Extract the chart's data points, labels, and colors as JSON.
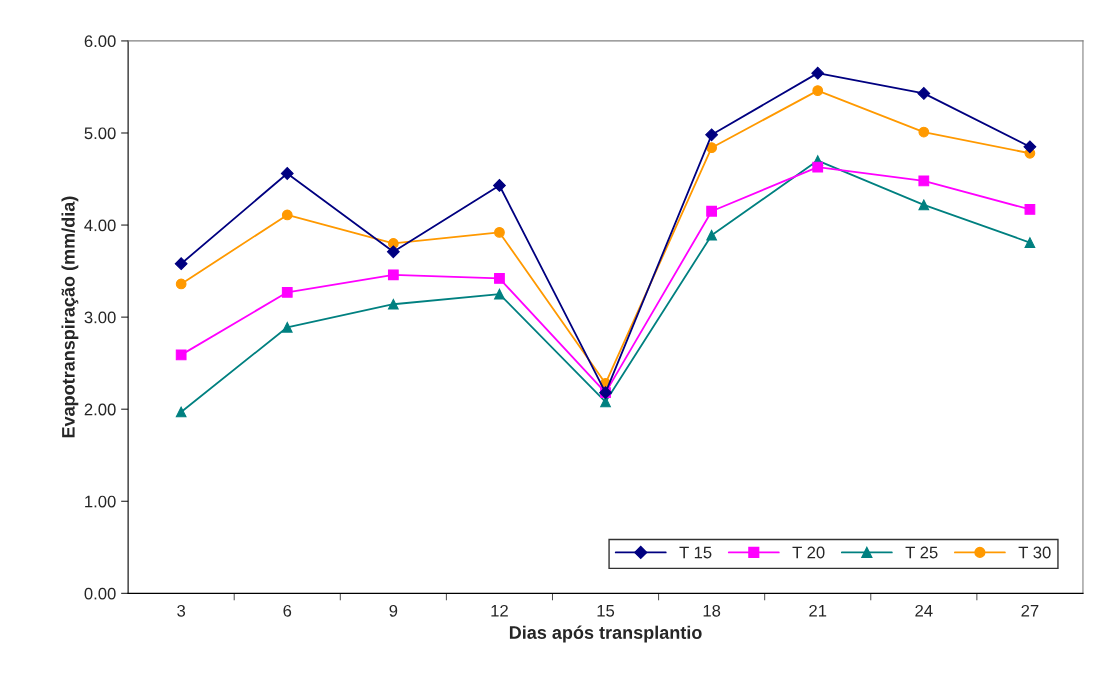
{
  "chart_data": {
    "type": "line",
    "xlabel": "Dias após transplantio",
    "ylabel": "Evapotranspiração (mm/dia)",
    "categories": [
      "3",
      "6",
      "9",
      "12",
      "15",
      "18",
      "21",
      "24",
      "27"
    ],
    "series": [
      {
        "name": "T 15",
        "color": "#000080",
        "marker": "diamond",
        "values": [
          3.58,
          4.56,
          3.71,
          4.43,
          2.18,
          4.98,
          5.65,
          5.43,
          4.85
        ]
      },
      {
        "name": "T 20",
        "color": "#ff00ff",
        "marker": "square",
        "values": [
          2.59,
          3.27,
          3.46,
          3.42,
          2.18,
          4.15,
          4.63,
          4.48,
          4.17
        ]
      },
      {
        "name": "T 25",
        "color": "#008080",
        "marker": "triangle",
        "values": [
          1.97,
          2.89,
          3.14,
          3.25,
          2.08,
          3.89,
          4.7,
          4.22,
          3.81
        ]
      },
      {
        "name": "T 30",
        "color": "#ff9900",
        "marker": "circle",
        "values": [
          3.36,
          4.11,
          3.8,
          3.92,
          2.28,
          4.84,
          5.46,
          5.01,
          4.78
        ]
      }
    ],
    "ylim": [
      0,
      6
    ],
    "yticks": [
      {
        "value": 0,
        "label": "0.00"
      },
      {
        "value": 1,
        "label": "1.00"
      },
      {
        "value": 2,
        "label": "2.00"
      },
      {
        "value": 3,
        "label": "3.00"
      },
      {
        "value": 4,
        "label": "4.00"
      },
      {
        "value": 5,
        "label": "5.00"
      },
      {
        "value": 6,
        "label": "6.00"
      }
    ],
    "grid": false,
    "legend": "bottom right",
    "line_style": "solid"
  }
}
